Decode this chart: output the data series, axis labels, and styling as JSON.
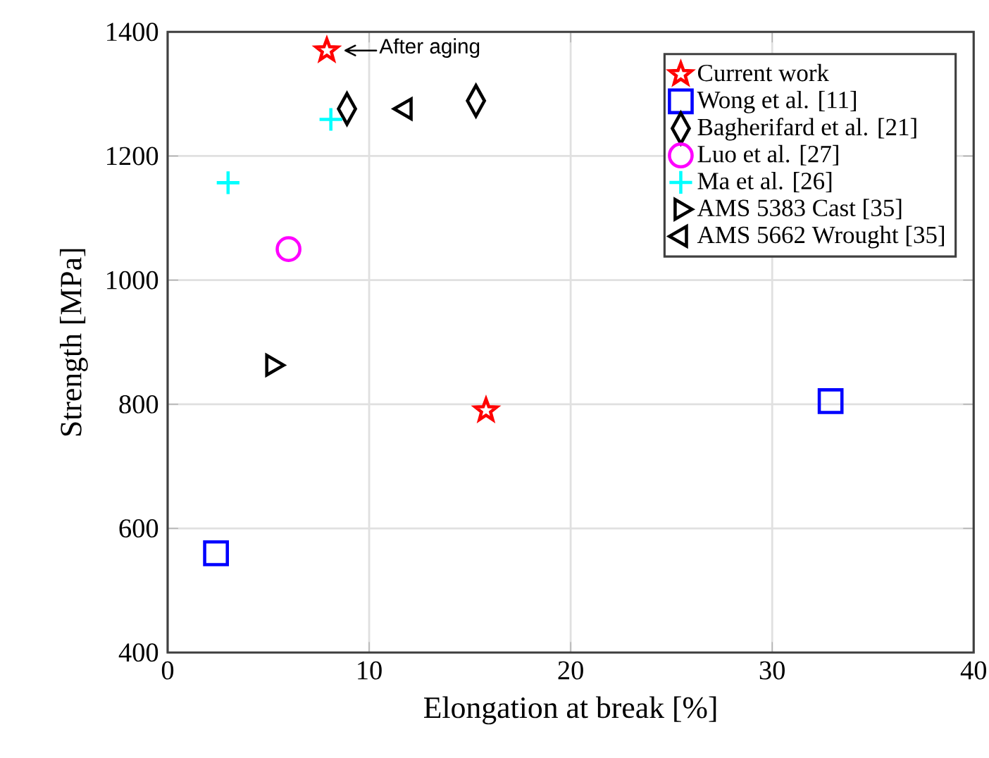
{
  "chart_data": {
    "type": "scatter",
    "xlabel": "Elongation at break [%]",
    "ylabel": "Strength [MPa]",
    "xlim": [
      0,
      40
    ],
    "ylim": [
      400,
      1400
    ],
    "xticks": [
      0,
      10,
      20,
      30,
      40
    ],
    "yticks": [
      400,
      600,
      800,
      1000,
      1200,
      1400
    ],
    "grid": true,
    "legend": "top right",
    "series": [
      {
        "name": "Current work",
        "color": "#ff0000",
        "marker": "star",
        "x": [
          7.9,
          15.8
        ],
        "values": [
          1370,
          790
        ]
      },
      {
        "name": "Wong et al. [11]",
        "color": "#0000ff",
        "marker": "square",
        "x": [
          2.4,
          32.9
        ],
        "values": [
          560,
          805
        ]
      },
      {
        "name": "Bagherifard et al. [21]",
        "color": "#000000",
        "marker": "diamond",
        "x": [
          8.9,
          15.3
        ],
        "values": [
          1276,
          1289
        ]
      },
      {
        "name": "Luo et al. [27]",
        "color": "#ff00ff",
        "marker": "circle",
        "x": [
          6.0
        ],
        "values": [
          1050
        ]
      },
      {
        "name": "Ma et al. [26]",
        "color": "#00ffff",
        "marker": "cross",
        "x": [
          3.0,
          8.1
        ],
        "values": [
          1157,
          1259
        ]
      },
      {
        "name": "AMS 5383 Cast [35]",
        "color": "#000000",
        "marker": "triangle-right",
        "x": [
          5.2
        ],
        "values": [
          863
        ]
      },
      {
        "name": "AMS 5662 Wrought [35]",
        "color": "#000000",
        "marker": "triangle-left",
        "x": [
          11.8
        ],
        "values": [
          1276
        ]
      }
    ],
    "annotations": [
      {
        "text": "After aging",
        "x": 7.9,
        "y": 1370
      }
    ]
  }
}
